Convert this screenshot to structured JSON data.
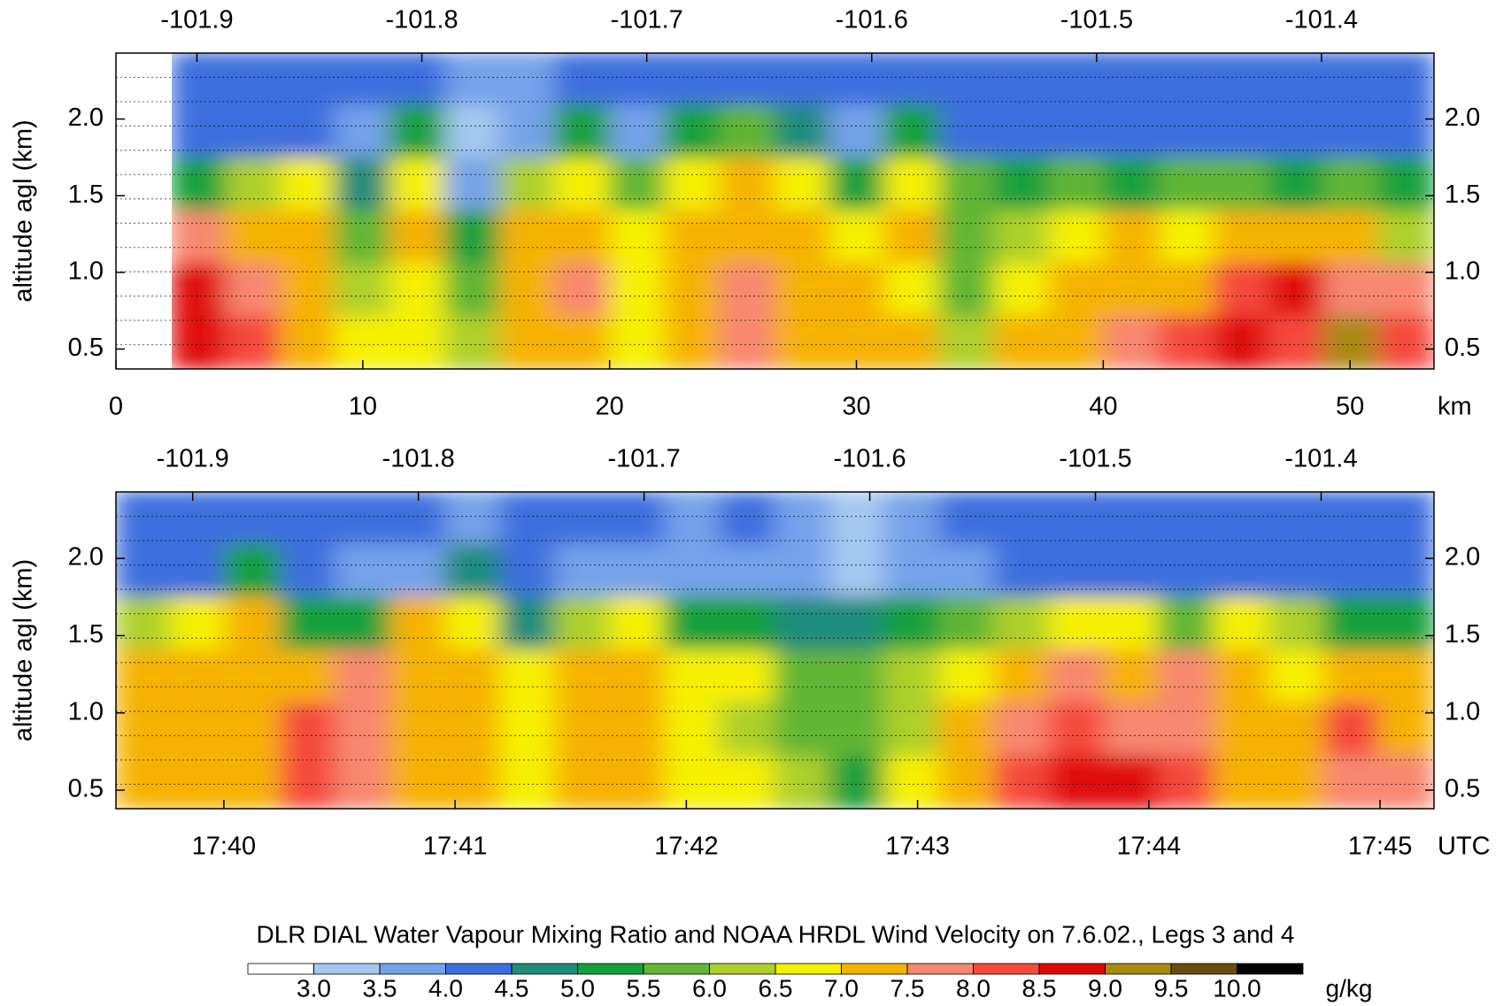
{
  "chart_data": [
    {
      "type": "heatmap",
      "xlabel": "km",
      "ylabel": "altitude agl (km)",
      "xlim": [
        0,
        53.4
      ],
      "xticks": [
        0,
        10,
        20,
        30,
        40,
        50
      ],
      "x2lim": [
        -101.936,
        -101.35
      ],
      "x2ticks": [
        -101.9,
        -101.8,
        -101.7,
        -101.6,
        -101.5,
        -101.4
      ],
      "ylim": [
        0.37,
        2.43
      ],
      "yticks": [
        0.5,
        {
          "value": 1,
          "label": "1.0"
        },
        1.5,
        {
          "value": 2,
          "label": "2.0"
        }
      ],
      "z": [
        [
          null,
          4.2,
          4.1,
          4.2,
          4.0,
          4.1,
          3.8,
          3.9,
          4.1,
          4.0,
          4.2,
          4.1,
          4.2,
          4.0,
          4.1,
          4.2,
          4.3,
          4.2,
          4.3,
          4.2,
          4.3,
          4.4,
          4.2,
          4.3
        ],
        [
          null,
          4.0,
          4.1,
          4.0,
          3.8,
          5.2,
          3.4,
          3.6,
          5.0,
          3.7,
          5.3,
          5.5,
          4.5,
          3.9,
          5.0,
          4.0,
          4.2,
          4.3,
          4.2,
          4.3,
          4.2,
          4.3,
          4.4,
          4.2
        ],
        [
          null,
          5.2,
          6.4,
          6.8,
          4.6,
          6.9,
          3.8,
          6.2,
          6.8,
          5.8,
          6.9,
          7.0,
          6.6,
          5.2,
          6.8,
          5.6,
          5.4,
          5.5,
          5.4,
          5.6,
          5.5,
          5.4,
          5.6,
          5.3
        ],
        [
          null,
          7.6,
          7.0,
          7.3,
          5.8,
          7.2,
          5.2,
          7.1,
          7.3,
          6.5,
          7.2,
          7.4,
          7.1,
          6.8,
          7.0,
          5.7,
          6.4,
          6.6,
          7.0,
          6.8,
          7.3,
          7.1,
          7.0,
          6.4
        ],
        [
          null,
          8.6,
          7.8,
          7.2,
          6.4,
          6.9,
          5.9,
          7.3,
          7.6,
          6.6,
          7.4,
          7.6,
          7.3,
          7.0,
          6.9,
          5.9,
          6.8,
          7.0,
          7.2,
          7.4,
          8.0,
          8.6,
          7.6,
          7.9
        ],
        [
          null,
          8.8,
          8.2,
          7.4,
          6.6,
          6.5,
          6.2,
          7.0,
          7.2,
          6.8,
          7.3,
          7.5,
          7.0,
          7.2,
          7.1,
          6.4,
          7.0,
          7.3,
          7.6,
          8.1,
          8.7,
          8.2,
          9.2,
          8.0
        ]
      ]
    },
    {
      "type": "heatmap",
      "xlabel": "UTC",
      "ylabel": "altitude agl (km)",
      "xlim": [
        "17:39:32",
        "17:45:14"
      ],
      "xticks": [
        "17:40",
        "17:41",
        "17:42",
        "17:43",
        "17:44",
        "17:45"
      ],
      "x2lim": [
        -101.934,
        -101.35
      ],
      "x2ticks": [
        -101.9,
        -101.8,
        -101.7,
        -101.6,
        -101.5,
        -101.4
      ],
      "ylim": [
        0.38,
        2.43
      ],
      "yticks": [
        0.5,
        {
          "value": 1,
          "label": "1.0"
        },
        1.5,
        {
          "value": 2,
          "label": "2.0"
        }
      ],
      "z": [
        [
          4.2,
          4.3,
          4.2,
          4.1,
          4.2,
          4.1,
          3.9,
          4.0,
          4.1,
          4.2,
          3.8,
          4.0,
          3.6,
          3.4,
          3.8,
          4.1,
          4.2,
          4.3,
          4.2,
          4.4,
          4.2,
          4.3,
          4.3,
          4.3
        ],
        [
          4.1,
          4.2,
          5.0,
          4.0,
          3.9,
          3.8,
          4.6,
          4.0,
          3.7,
          3.8,
          3.6,
          3.8,
          3.7,
          3.2,
          3.7,
          3.9,
          4.0,
          4.1,
          4.0,
          4.0,
          4.1,
          4.2,
          4.0,
          4.1
        ],
        [
          6.2,
          6.8,
          7.2,
          5.4,
          5.0,
          7.0,
          6.6,
          4.7,
          6.0,
          6.8,
          5.4,
          5.0,
          4.8,
          4.5,
          5.0,
          5.8,
          6.2,
          6.9,
          6.6,
          5.6,
          6.8,
          6.2,
          5.3,
          5.2
        ],
        [
          7.2,
          7.3,
          7.4,
          7.0,
          7.6,
          7.4,
          7.2,
          6.9,
          7.0,
          7.1,
          6.5,
          6.6,
          5.9,
          5.6,
          6.2,
          6.9,
          7.4,
          7.8,
          7.4,
          7.5,
          7.2,
          6.9,
          7.3,
          7.0
        ],
        [
          7.0,
          7.3,
          7.1,
          8.2,
          7.8,
          7.1,
          7.3,
          6.6,
          7.2,
          7.0,
          6.6,
          6.4,
          5.8,
          5.6,
          6.4,
          7.1,
          7.8,
          8.1,
          7.6,
          7.8,
          7.0,
          7.1,
          8.1,
          7.3
        ],
        [
          7.1,
          7.2,
          7.4,
          8.4,
          7.9,
          7.2,
          7.0,
          6.8,
          7.0,
          7.1,
          6.7,
          6.6,
          6.2,
          5.3,
          6.5,
          7.2,
          8.3,
          8.8,
          8.5,
          8.0,
          7.2,
          7.4,
          7.8,
          7.5
        ]
      ]
    },
    {
      "type": "colorbar",
      "title": "DLR DIAL Water Vapour Mixing Ratio and NOAA HRDL Wind Velocity on 7.6.02., Legs 3 and 4",
      "unit": "g/kg",
      "levels": [
        {
          "value": 3,
          "label": "3.0"
        },
        3.5,
        {
          "value": 4,
          "label": "4.0"
        },
        4.5,
        {
          "value": 5,
          "label": "5.0"
        },
        5.5,
        {
          "value": 6,
          "label": "6.0"
        },
        6.5,
        {
          "value": 7,
          "label": "7.0"
        },
        7.5,
        {
          "value": 8,
          "label": "8.0"
        },
        8.5,
        {
          "value": 9,
          "label": "9.0"
        },
        9.5,
        {
          "value": 10,
          "label": "10.0"
        }
      ],
      "colors": [
        "#ffffff",
        "#a4c8f0",
        "#74a2ea",
        "#3d6ede",
        "#1f8c7c",
        "#16a03c",
        "#62b634",
        "#aed02a",
        "#f6f000",
        "#f6b200",
        "#f7876f",
        "#f54a3c",
        "#e00808",
        "#a88a10",
        "#6a4c10",
        "#000000"
      ]
    }
  ]
}
